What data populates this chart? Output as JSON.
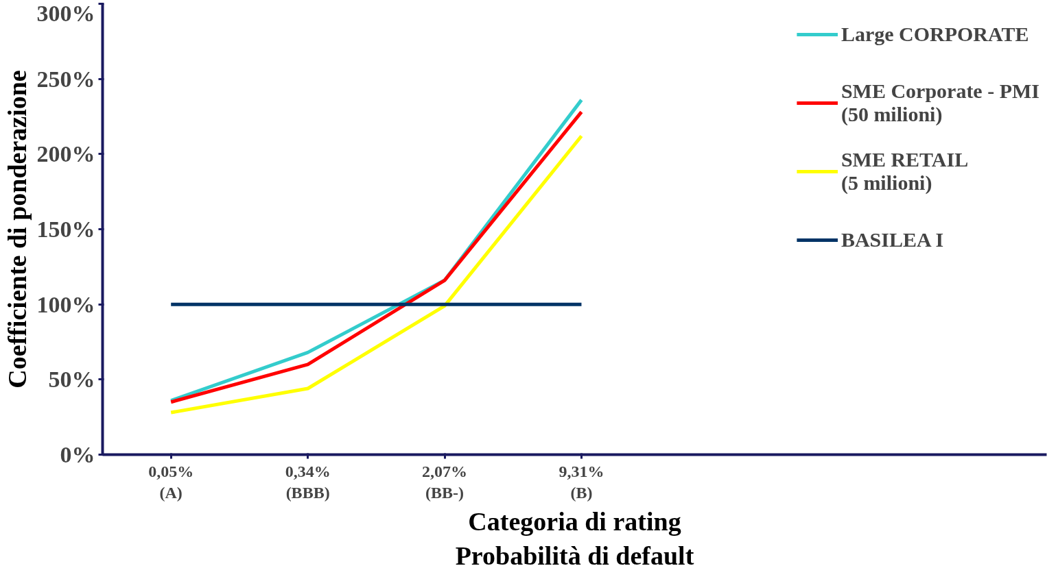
{
  "chart_data": {
    "type": "line",
    "xlabel": "Categoria di rating\nProbabilità di default",
    "ylabel": "Coefficiente di ponderazione",
    "categories": [
      "0,05%\n(A)",
      "0,34%\n(BBB)",
      "2,07%\n(BB-)",
      "9,31%\n(B)"
    ],
    "series": [
      {
        "name": "Large CORPORATE",
        "color": "#33cccc",
        "values": [
          36,
          68,
          116,
          236
        ]
      },
      {
        "name": "SME Corporate - PMI\n(50 milioni)",
        "color": "#ff0000",
        "values": [
          35,
          60,
          116,
          228
        ]
      },
      {
        "name": "SME RETAIL\n(5 milioni)",
        "color": "#ffff00",
        "values": [
          28,
          44,
          99,
          212
        ]
      },
      {
        "name": "BASILEA I",
        "color": "#003366",
        "values": [
          100,
          100,
          100,
          100
        ]
      }
    ],
    "ylim": [
      0,
      300
    ],
    "yticks": [
      {
        "value": 0,
        "label": "0%"
      },
      {
        "value": 50,
        "label": "50%"
      },
      {
        "value": 100,
        "label": "100%"
      },
      {
        "value": 150,
        "label": "150%"
      },
      {
        "value": 200,
        "label": "200%"
      },
      {
        "value": 250,
        "label": "250%"
      },
      {
        "value": 300,
        "label": "300%"
      }
    ],
    "grid": false,
    "legend": "right",
    "marker": "none",
    "line_style": "solid"
  }
}
